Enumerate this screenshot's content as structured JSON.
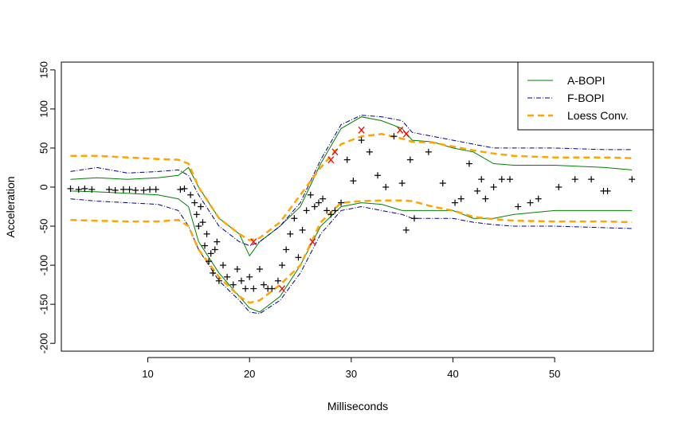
{
  "chart_data": {
    "type": "scatter",
    "xlabel": "Milliseconds",
    "ylabel": "Acceleration",
    "xlim": [
      0,
      60
    ],
    "ylim": [
      -210,
      160
    ],
    "xticks": [
      10,
      20,
      30,
      40,
      50
    ],
    "yticks": [
      -200,
      -150,
      -100,
      -50,
      0,
      50,
      100,
      150
    ],
    "grid": false,
    "legend_position": "top-right",
    "legend": [
      {
        "label": "A-BOPI",
        "color": "#008000",
        "style": "solid"
      },
      {
        "label": "F-BOPI",
        "color": "#00008B",
        "style": "dotdash"
      },
      {
        "label": "Loess Conv.",
        "color": "#FFA500",
        "style": "dashed"
      }
    ],
    "series": [
      {
        "name": "A-BOPI",
        "color": "#008000",
        "upper": {
          "x": [
            2.4,
            5,
            8,
            11,
            13,
            14,
            15,
            17,
            19,
            20,
            21,
            23,
            25,
            27,
            29,
            31,
            33,
            35,
            36,
            38,
            40,
            42,
            44,
            46,
            50,
            55,
            57.6
          ],
          "y": [
            10,
            12,
            10,
            12,
            15,
            25,
            0,
            -40,
            -60,
            -88,
            -70,
            -50,
            -25,
            30,
            75,
            90,
            85,
            75,
            60,
            58,
            50,
            45,
            30,
            28,
            28,
            25,
            22
          ]
        },
        "lower": {
          "x": [
            2.4,
            5,
            8,
            11,
            13,
            14,
            15,
            17,
            19,
            20,
            21,
            23,
            25,
            27,
            29,
            31,
            33,
            35,
            36,
            38,
            40,
            42,
            44,
            46,
            50,
            55,
            57.6
          ],
          "y": [
            -5,
            -6,
            -8,
            -10,
            -15,
            -25,
            -70,
            -110,
            -140,
            -155,
            -160,
            -140,
            -100,
            -50,
            -25,
            -20,
            -22,
            -30,
            -30,
            -30,
            -30,
            -40,
            -40,
            -35,
            -30,
            -30,
            -30
          ]
        }
      },
      {
        "name": "F-BOPI",
        "color": "#00008B",
        "upper": {
          "x": [
            2.4,
            5,
            8,
            11,
            13,
            14,
            15,
            17,
            19,
            20,
            21,
            23,
            25,
            27,
            29,
            31,
            33,
            35,
            36,
            38,
            40,
            42,
            44,
            46,
            50,
            55,
            57.6
          ],
          "y": [
            20,
            25,
            18,
            20,
            22,
            15,
            -10,
            -50,
            -70,
            -75,
            -70,
            -50,
            -20,
            35,
            80,
            92,
            90,
            85,
            70,
            65,
            60,
            55,
            50,
            50,
            50,
            48,
            48
          ]
        },
        "lower": {
          "x": [
            2.4,
            5,
            8,
            11,
            13,
            14,
            15,
            17,
            19,
            20,
            21,
            23,
            25,
            27,
            29,
            31,
            33,
            35,
            36,
            38,
            40,
            42,
            44,
            46,
            50,
            55,
            57.6
          ],
          "y": [
            -15,
            -18,
            -20,
            -22,
            -30,
            -50,
            -80,
            -120,
            -145,
            -160,
            -162,
            -145,
            -110,
            -60,
            -30,
            -25,
            -30,
            -35,
            -40,
            -40,
            -40,
            -45,
            -48,
            -50,
            -50,
            -52,
            -53
          ]
        }
      },
      {
        "name": "Loess Conv.",
        "color": "#FFA500",
        "upper": {
          "x": [
            2.4,
            5,
            8,
            11,
            13,
            14,
            15,
            17,
            19,
            20,
            21,
            23,
            25,
            27,
            29,
            31,
            33,
            35,
            36,
            38,
            40,
            42,
            44,
            46,
            50,
            55,
            57.6
          ],
          "y": [
            40,
            40,
            38,
            36,
            35,
            30,
            0,
            -40,
            -60,
            -68,
            -65,
            -45,
            -10,
            25,
            55,
            65,
            68,
            62,
            58,
            57,
            52,
            47,
            43,
            40,
            38,
            38,
            37
          ]
        },
        "lower": {
          "x": [
            2.4,
            5,
            8,
            11,
            13,
            14,
            15,
            17,
            19,
            20,
            21,
            23,
            25,
            27,
            29,
            31,
            33,
            35,
            36,
            38,
            40,
            42,
            44,
            46,
            50,
            55,
            57.6
          ],
          "y": [
            -42,
            -43,
            -44,
            -44,
            -42,
            -50,
            -80,
            -115,
            -140,
            -148,
            -145,
            -125,
            -100,
            -45,
            -20,
            -18,
            -17,
            -17,
            -18,
            -25,
            -30,
            -38,
            -41,
            -43,
            -44,
            -44,
            -45
          ]
        }
      }
    ],
    "points": {
      "plus": {
        "color": "#000000",
        "x": [
          2.4,
          3.2,
          3.8,
          4.5,
          6.2,
          6.8,
          7.6,
          8.2,
          8.8,
          9.6,
          10.2,
          10.8,
          13.2,
          13.6,
          14.2,
          14.6,
          14.8,
          15.0,
          15.2,
          15.4,
          15.6,
          15.8,
          16.0,
          16.2,
          16.4,
          16.6,
          16.8,
          17.0,
          17.4,
          17.8,
          18.4,
          18.8,
          19.2,
          19.6,
          20.0,
          20.4,
          21.0,
          21.4,
          21.8,
          22.2,
          22.8,
          23.2,
          23.6,
          24.0,
          24.4,
          24.8,
          25.2,
          25.6,
          26.0,
          26.4,
          26.8,
          27.2,
          27.6,
          28.0,
          28.4,
          29.0,
          29.6,
          30.2,
          31.0,
          31.8,
          32.6,
          33.4,
          34.2,
          35.0,
          35.4,
          35.8,
          36.2,
          37.6,
          39.0,
          40.2,
          40.8,
          41.6,
          42.4,
          42.8,
          43.2,
          44.0,
          44.8,
          45.6,
          46.4,
          47.6,
          48.4,
          50.4,
          52.0,
          53.6,
          54.8,
          55.2,
          57.6
        ],
        "y": [
          -2,
          -3,
          -2,
          -3,
          -3,
          -4,
          -3,
          -3,
          -4,
          -4,
          -3,
          -3,
          -3,
          -2,
          -10,
          -20,
          -35,
          -50,
          -25,
          -45,
          -75,
          -60,
          -95,
          -85,
          -110,
          -80,
          -70,
          -120,
          -100,
          -115,
          -125,
          -105,
          -120,
          -130,
          -115,
          -130,
          -105,
          -125,
          -130,
          -130,
          -120,
          -100,
          -80,
          -60,
          -40,
          -90,
          -55,
          -30,
          -10,
          -25,
          -20,
          -15,
          -30,
          -35,
          -30,
          -20,
          35,
          8,
          60,
          45,
          15,
          0,
          65,
          5,
          -55,
          35,
          -40,
          45,
          5,
          -20,
          -15,
          30,
          -5,
          10,
          -15,
          0,
          10,
          10,
          -25,
          -20,
          -15,
          0,
          10,
          10,
          -5,
          -5,
          10
        ]
      },
      "cross": {
        "color": "#FF0000",
        "x": [
          20.4,
          23.2,
          26.2,
          28.0,
          28.4,
          31.0,
          34.8,
          35.4
        ],
        "y": [
          -70,
          -130,
          -70,
          35,
          45,
          73,
          73,
          68
        ]
      }
    }
  }
}
